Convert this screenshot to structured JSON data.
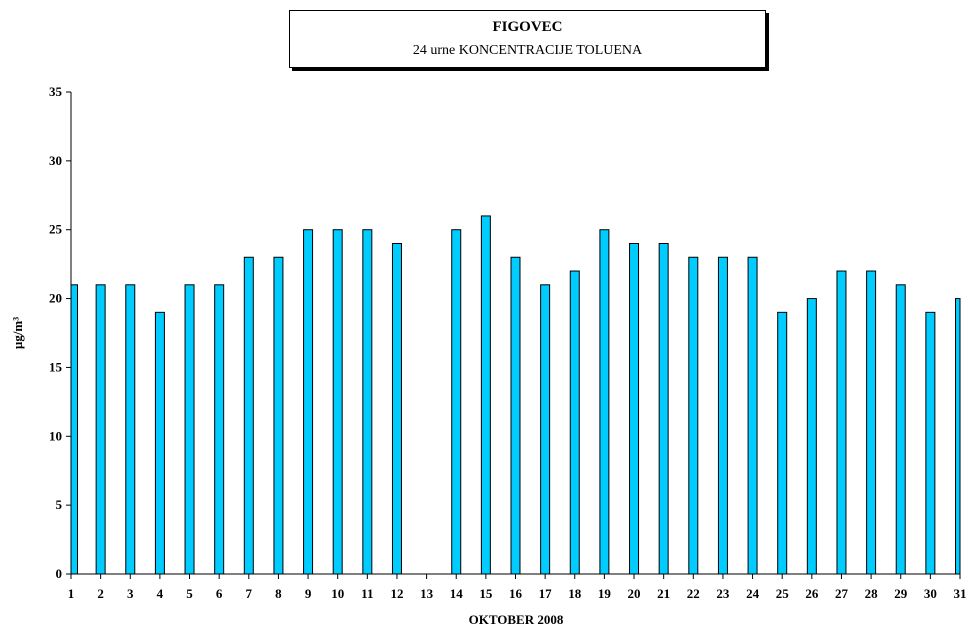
{
  "chart_data": {
    "type": "bar",
    "title": "FIGOVEC",
    "subtitle": "24 urne KONCENTRACIJE TOLUENA",
    "xlabel": "OKTOBER 2008",
    "ylabel": "µg/m³",
    "ylim": [
      0,
      35
    ],
    "yticks": [
      0,
      5,
      10,
      15,
      20,
      25,
      30,
      35
    ],
    "categories": [
      "1",
      "2",
      "3",
      "4",
      "5",
      "6",
      "7",
      "8",
      "9",
      "10",
      "11",
      "12",
      "13",
      "14",
      "15",
      "16",
      "17",
      "18",
      "19",
      "20",
      "21",
      "22",
      "23",
      "24",
      "25",
      "26",
      "27",
      "28",
      "29",
      "30",
      "31"
    ],
    "values": [
      21,
      21,
      21,
      19,
      21,
      21,
      23,
      23,
      25,
      25,
      25,
      24,
      null,
      25,
      26,
      23,
      21,
      22,
      25,
      24,
      24,
      23,
      23,
      23,
      19,
      20,
      22,
      22,
      21,
      19,
      20
    ],
    "bar_color": "#00CCFF",
    "grid": false,
    "legend": "none"
  }
}
